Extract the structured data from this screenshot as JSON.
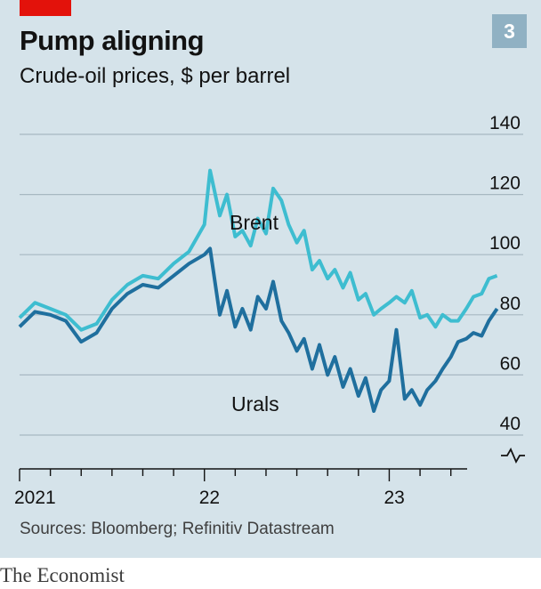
{
  "header": {
    "title": "Pump aligning",
    "subtitle": "Crude-oil prices, $ per barrel",
    "chart_number": "3",
    "accent_color": "#e3120b",
    "badge_color": "#90b1c3"
  },
  "footer": {
    "source": "Sources: Bloomberg; Refinitiv Datastream",
    "brand": "The Economist"
  },
  "chart_data": {
    "type": "line",
    "title": "Pump aligning",
    "subtitle": "Crude-oil prices, $ per barrel",
    "ylim": [
      40,
      140
    ],
    "yticks": [
      40,
      60,
      80,
      100,
      120,
      140
    ],
    "ytick_labels": [
      "40",
      "60",
      "80",
      "100",
      "120",
      "140"
    ],
    "y_axis_break": true,
    "grid": true,
    "x_axis": {
      "start": "2021-01",
      "end": "2023-06",
      "tick_labels": [
        {
          "label": "2021",
          "x": "2021-01"
        },
        {
          "label": "22",
          "x": "2022-01"
        },
        {
          "label": "23",
          "x": "2023-01"
        }
      ]
    },
    "series": [
      {
        "name": "Brent",
        "color": "#3ebdd0",
        "points": [
          [
            "2021-01",
            79
          ],
          [
            "2021-02",
            84
          ],
          [
            "2021-03",
            82
          ],
          [
            "2021-04",
            80
          ],
          [
            "2021-05",
            75
          ],
          [
            "2021-06",
            77
          ],
          [
            "2021-07",
            85
          ],
          [
            "2021-08",
            90
          ],
          [
            "2021-09",
            93
          ],
          [
            "2021-10",
            92
          ],
          [
            "2021-11",
            97
          ],
          [
            "2021-12",
            101
          ],
          [
            "2022-01",
            110
          ],
          [
            "2022-01-12",
            128
          ],
          [
            "2022-02",
            113
          ],
          [
            "2022-02-15",
            120
          ],
          [
            "2022-03",
            106
          ],
          [
            "2022-03-15",
            108
          ],
          [
            "2022-04",
            103
          ],
          [
            "2022-04-15",
            112
          ],
          [
            "2022-05",
            107
          ],
          [
            "2022-05-15",
            122
          ],
          [
            "2022-06",
            118
          ],
          [
            "2022-06-15",
            110
          ],
          [
            "2022-07",
            104
          ],
          [
            "2022-07-15",
            108
          ],
          [
            "2022-08",
            95
          ],
          [
            "2022-08-15",
            98
          ],
          [
            "2022-09",
            92
          ],
          [
            "2022-09-15",
            95
          ],
          [
            "2022-10",
            89
          ],
          [
            "2022-10-15",
            94
          ],
          [
            "2022-11",
            85
          ],
          [
            "2022-11-15",
            87
          ],
          [
            "2022-12",
            80
          ],
          [
            "2022-12-15",
            82
          ],
          [
            "2023-01",
            84
          ],
          [
            "2023-01-15",
            86
          ],
          [
            "2023-02",
            84
          ],
          [
            "2023-02-15",
            88
          ],
          [
            "2023-03",
            79
          ],
          [
            "2023-03-15",
            80
          ],
          [
            "2023-04",
            76
          ],
          [
            "2023-04-15",
            80
          ],
          [
            "2023-05",
            78
          ],
          [
            "2023-05-15",
            78
          ],
          [
            "2023-06",
            82
          ],
          [
            "2023-06-15",
            86
          ],
          [
            "2023-07",
            87
          ],
          [
            "2023-07-15",
            92
          ],
          [
            "2023-08",
            93
          ]
        ]
      },
      {
        "name": "Urals",
        "color": "#1f6f9e",
        "points": [
          [
            "2021-01",
            76
          ],
          [
            "2021-02",
            81
          ],
          [
            "2021-03",
            80
          ],
          [
            "2021-04",
            78
          ],
          [
            "2021-05",
            71
          ],
          [
            "2021-06",
            74
          ],
          [
            "2021-07",
            82
          ],
          [
            "2021-08",
            87
          ],
          [
            "2021-09",
            90
          ],
          [
            "2021-10",
            89
          ],
          [
            "2021-11",
            93
          ],
          [
            "2021-12",
            97
          ],
          [
            "2022-01",
            100
          ],
          [
            "2022-01-12",
            102
          ],
          [
            "2022-02",
            80
          ],
          [
            "2022-02-15",
            88
          ],
          [
            "2022-03",
            76
          ],
          [
            "2022-03-15",
            82
          ],
          [
            "2022-04",
            75
          ],
          [
            "2022-04-15",
            86
          ],
          [
            "2022-05",
            82
          ],
          [
            "2022-05-15",
            91
          ],
          [
            "2022-06",
            78
          ],
          [
            "2022-06-15",
            74
          ],
          [
            "2022-07",
            68
          ],
          [
            "2022-07-15",
            72
          ],
          [
            "2022-08",
            62
          ],
          [
            "2022-08-15",
            70
          ],
          [
            "2022-09",
            60
          ],
          [
            "2022-09-15",
            66
          ],
          [
            "2022-10",
            56
          ],
          [
            "2022-10-15",
            62
          ],
          [
            "2022-11",
            53
          ],
          [
            "2022-11-15",
            59
          ],
          [
            "2022-12",
            48
          ],
          [
            "2022-12-15",
            55
          ],
          [
            "2023-01",
            58
          ],
          [
            "2023-01-15",
            75
          ],
          [
            "2023-02",
            52
          ],
          [
            "2023-02-15",
            55
          ],
          [
            "2023-03",
            50
          ],
          [
            "2023-03-15",
            55
          ],
          [
            "2023-04",
            58
          ],
          [
            "2023-04-15",
            62
          ],
          [
            "2023-05",
            66
          ],
          [
            "2023-05-15",
            71
          ],
          [
            "2023-06",
            72
          ],
          [
            "2023-06-15",
            74
          ],
          [
            "2023-07",
            73
          ],
          [
            "2023-07-15",
            78
          ],
          [
            "2023-08",
            82
          ]
        ]
      }
    ]
  }
}
